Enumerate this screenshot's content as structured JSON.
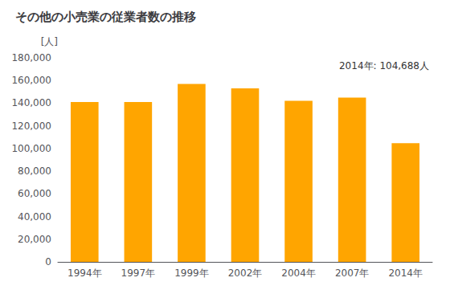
{
  "chart_data": {
    "type": "bar",
    "title": "その他の小売業の従業者数の推移",
    "ylabel": "[人]",
    "annotation": "2014年: 104,688人",
    "categories": [
      "1994年",
      "1997年",
      "1999年",
      "2002年",
      "2004年",
      "2007年",
      "2014年"
    ],
    "values": [
      141000,
      141000,
      157000,
      153000,
      142000,
      145000,
      104688
    ],
    "color": "#FFA500",
    "ylim": [
      0,
      180000
    ],
    "yticks": [
      0,
      {
        "value": 20000,
        "label": "20,000"
      },
      {
        "value": 40000,
        "label": "40,000"
      },
      {
        "value": 60000,
        "label": "60,000"
      },
      {
        "value": 80000,
        "label": "80,000"
      },
      {
        "value": 100000,
        "label": "100,000"
      },
      {
        "value": 120000,
        "label": "120,000"
      },
      {
        "value": 140000,
        "label": "140,000"
      },
      {
        "value": 160000,
        "label": "160,000"
      },
      {
        "value": 180000,
        "label": "180,000"
      }
    ],
    "grid": false
  }
}
